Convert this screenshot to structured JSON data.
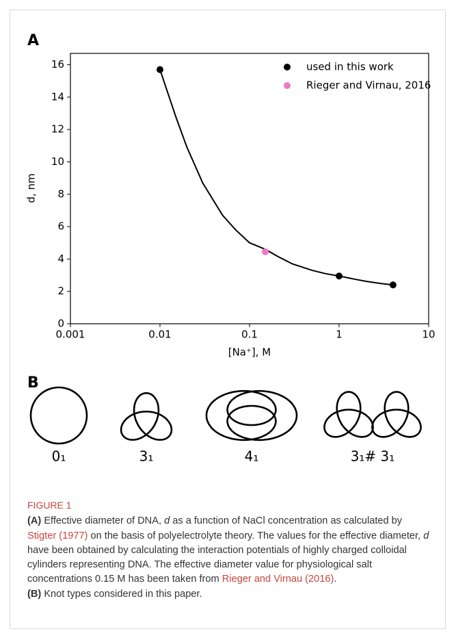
{
  "chart_data": {
    "type": "scatter",
    "panel_label": "A",
    "xlabel": "[Na⁺], M",
    "ylabel": "d, nm",
    "xscale": "log",
    "xlim": [
      0.001,
      10
    ],
    "xticks": [
      0.001,
      0.01,
      0.1,
      1,
      10
    ],
    "ylim": [
      0,
      16.7
    ],
    "yticks": [
      0,
      2,
      4,
      6,
      8,
      10,
      12,
      14,
      16
    ],
    "legend": "upper right",
    "series": [
      {
        "name": "used in this work",
        "color": "#000000",
        "x": [
          0.01,
          1,
          4
        ],
        "values": [
          15.7,
          2.95,
          2.4
        ]
      },
      {
        "name": "Rieger and Virnau, 2016",
        "color": "#ee77c6",
        "x": [
          0.15
        ],
        "values": [
          4.45
        ]
      }
    ],
    "curve": {
      "color": "#000000",
      "x": [
        0.01,
        0.015,
        0.02,
        0.03,
        0.05,
        0.07,
        0.1,
        0.15,
        0.2,
        0.3,
        0.5,
        0.7,
        1,
        1.5,
        2,
        3,
        4
      ],
      "values": [
        15.7,
        12.8,
        10.9,
        8.7,
        6.7,
        5.8,
        5.0,
        4.6,
        4.2,
        3.7,
        3.3,
        3.1,
        2.95,
        2.75,
        2.62,
        2.48,
        2.4
      ]
    }
  },
  "panel_b": {
    "label": "B",
    "knots": [
      "0₁",
      "3₁",
      "4₁",
      "3₁# 3₁"
    ]
  },
  "caption": {
    "title": "FIGURE 1",
    "a_label": "(A)",
    "a_text_1": " Effective diameter of DNA, ",
    "a_var": "d",
    "a_text_2": " as a function of NaCl concentration as calculated by ",
    "link_1": "Stigter (1977)",
    "a_text_3": " on the basis of polyelectrolyte theory. The values for the effective diameter, ",
    "a_var_2": "d",
    "a_text_4": " have been obtained by calculating the interaction potentials of highly charged colloidal cylinders representing DNA. The effective diameter value for physiological salt concentrations 0.15 M has been taken from ",
    "link_2": "Rieger and Virnau (2016)",
    "a_text_5": ".",
    "b_label": "(B)",
    "b_text": " Knot types considered in this paper."
  }
}
